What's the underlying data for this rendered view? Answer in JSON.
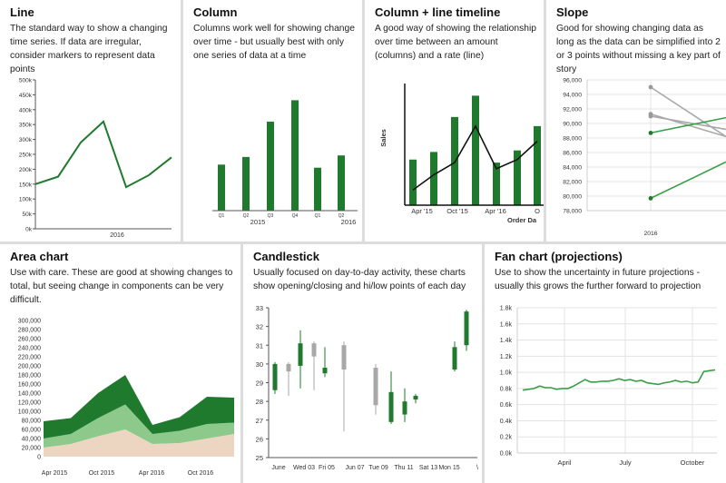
{
  "colors": {
    "dark_green": "#1f7a2e",
    "mid_green": "#3a9e48",
    "light_green": "#8cc98a",
    "peach": "#ecd6c2",
    "gray": "#a8a8a8",
    "axis": "#555555",
    "grid": "#e3e3e3"
  },
  "panels": [
    {
      "title": "Line",
      "description": "The standard way to show a changing time series. If data are irregular, consider markers to represent data points"
    },
    {
      "title": "Column",
      "description": "Columns work well for showing change over time - but usually best with only one series of data at a time"
    },
    {
      "title": "Column + line timeline",
      "description": "A good way of showing the relationship over time between an amount (columns) and a rate (line)"
    },
    {
      "title": "Slope",
      "description": "Good for showing changing data as long as the data can be simplified into 2 or 3 points without missing a key part of story"
    },
    {
      "title": "Area chart",
      "description": "Use with care. These are good at showing changes to total, but seeing change in components can be very difficult."
    },
    {
      "title": "Candlestick",
      "description": "Usually focused on day-to-day activity, these charts show opening/closing and hi/low points of each day"
    },
    {
      "title": "Fan chart (projections)",
      "description": "Use to show the uncertainty in future projections - usually this grows the further forward to projection"
    }
  ],
  "chart_data": [
    {
      "type": "line",
      "title": "Line",
      "ylim": [
        0,
        500000
      ],
      "y_ticks": [
        "0k",
        "50k",
        "100k",
        "150k",
        "200k",
        "250k",
        "300k",
        "350k",
        "400k",
        "450k",
        "500k"
      ],
      "x_ticks": [
        "2016"
      ],
      "x": [
        0,
        1,
        2,
        3,
        4,
        5,
        6
      ],
      "values": [
        150000,
        175000,
        290000,
        360000,
        140000,
        180000,
        240000
      ]
    },
    {
      "type": "bar",
      "title": "Column",
      "ylim": [
        0,
        450000
      ],
      "categories": [
        "Q1",
        "Q2",
        "Q3",
        "Q4",
        "Q1",
        "Q2"
      ],
      "group_labels": [
        "2015",
        "2016"
      ],
      "values": [
        150000,
        175000,
        290000,
        360000,
        140000,
        180000
      ]
    },
    {
      "type": "bar",
      "title": "Column + line timeline",
      "ylabel": "Sales",
      "xlabel": "Order Da",
      "ylim": [
        0,
        400000
      ],
      "x_ticks": [
        "Apr '15",
        "Oct '15",
        "Apr '16",
        "O"
      ],
      "values": [
        150000,
        175000,
        290000,
        360000,
        140000,
        180000,
        260000
      ],
      "line_values": [
        50000,
        100000,
        140000,
        260000,
        120000,
        150000,
        210000
      ]
    },
    {
      "type": "line",
      "title": "Slope",
      "ylim": [
        78000,
        96000
      ],
      "y_ticks": [
        "78,000",
        "80,000",
        "82,000",
        "84,000",
        "86,000",
        "88,000",
        "90,000",
        "92,000",
        "94,000",
        "96,000"
      ],
      "x_ticks": [
        "2016"
      ],
      "series": [
        {
          "start": 95000,
          "end": 88200,
          "color": "gray"
        },
        {
          "start": 91300,
          "end": 88200,
          "color": "gray"
        },
        {
          "start": 91000,
          "end": 89200,
          "color": "gray"
        },
        {
          "start": 88700,
          "end": 90800,
          "color": "green"
        },
        {
          "start": 79700,
          "end": 84700,
          "color": "green"
        }
      ]
    },
    {
      "type": "area",
      "title": "Area chart",
      "ylim": [
        0,
        300000
      ],
      "y_ticks": [
        "0",
        "20,000",
        "40,000",
        "60,000",
        "80,000",
        "100,000",
        "120,000",
        "140,000",
        "160,000",
        "180,000",
        "200,000",
        "220,000",
        "240,000",
        "260,000",
        "280,000",
        "300,000"
      ],
      "x_ticks": [
        "Apr 2015",
        "Oct 2015",
        "Apr 2016",
        "Oct 2016"
      ],
      "x": [
        0,
        1,
        2,
        3,
        4,
        5,
        6,
        7
      ],
      "series": [
        {
          "values": [
            20000,
            28000,
            45000,
            60000,
            28000,
            30000,
            40000,
            50000
          ]
        },
        {
          "values": [
            20000,
            22000,
            40000,
            55000,
            22000,
            27000,
            32000,
            25000
          ]
        },
        {
          "values": [
            38000,
            35000,
            55000,
            65000,
            20000,
            30000,
            60000,
            55000
          ]
        }
      ]
    },
    {
      "type": "candlestick",
      "title": "Candlestick",
      "ylim": [
        25,
        33
      ],
      "y_ticks": [
        "25",
        "26",
        "27",
        "28",
        "29",
        "30",
        "31",
        "32",
        "33"
      ],
      "x_ticks": [
        "June",
        "Wed 03",
        "Fri 05",
        "Jun 07",
        "Tue 09",
        "Thu 11",
        "Sat 13",
        "Mon 15",
        "\\"
      ],
      "candles": [
        {
          "open": 28.6,
          "close": 30.0,
          "high": 30.1,
          "low": 28.4,
          "color": "green"
        },
        {
          "open": 30.0,
          "close": 29.6,
          "high": 30.1,
          "low": 28.3,
          "color": "gray"
        },
        {
          "open": 29.9,
          "close": 31.1,
          "high": 31.8,
          "low": 28.7,
          "color": "green"
        },
        {
          "open": 31.1,
          "close": 30.4,
          "high": 31.2,
          "low": 28.6,
          "color": "gray"
        },
        {
          "open": 29.8,
          "close": 29.5,
          "high": 30.9,
          "low": 29.3,
          "color": "green"
        },
        {
          "open": 31.0,
          "close": 29.7,
          "high": 31.2,
          "low": 26.4,
          "color": "gray"
        },
        {
          "open": 29.8,
          "close": 27.8,
          "high": 30.0,
          "low": 27.3,
          "color": "gray"
        },
        {
          "open": 28.5,
          "close": 26.9,
          "high": 29.6,
          "low": 26.8,
          "color": "green"
        },
        {
          "open": 28.0,
          "close": 27.3,
          "high": 28.7,
          "low": 26.9,
          "color": "green"
        },
        {
          "open": 28.3,
          "close": 28.1,
          "high": 28.4,
          "low": 27.9,
          "color": "green"
        },
        {
          "open": 29.7,
          "close": 30.9,
          "high": 31.2,
          "low": 29.6,
          "color": "green"
        },
        {
          "open": 31.0,
          "close": 32.8,
          "high": 32.9,
          "low": 30.7,
          "color": "green"
        }
      ]
    },
    {
      "type": "line",
      "title": "Fan chart (projections)",
      "ylim": [
        0,
        1.8
      ],
      "y_ticks": [
        "0.0k",
        "0.2k",
        "0.4k",
        "0.6k",
        "0.8k",
        "1.0k",
        "1.2k",
        "1.4k",
        "1.6k",
        "1.8k"
      ],
      "x_ticks": [
        "April",
        "July",
        "October"
      ],
      "values": [
        0.78,
        0.79,
        0.8,
        0.83,
        0.81,
        0.81,
        0.79,
        0.8,
        0.8,
        0.83,
        0.87,
        0.91,
        0.88,
        0.88,
        0.89,
        0.89,
        0.9,
        0.92,
        0.9,
        0.91,
        0.89,
        0.9,
        0.87,
        0.86,
        0.85,
        0.87,
        0.88,
        0.9,
        0.88,
        0.89,
        0.87,
        0.88,
        1.01,
        1.02,
        1.03
      ]
    }
  ]
}
